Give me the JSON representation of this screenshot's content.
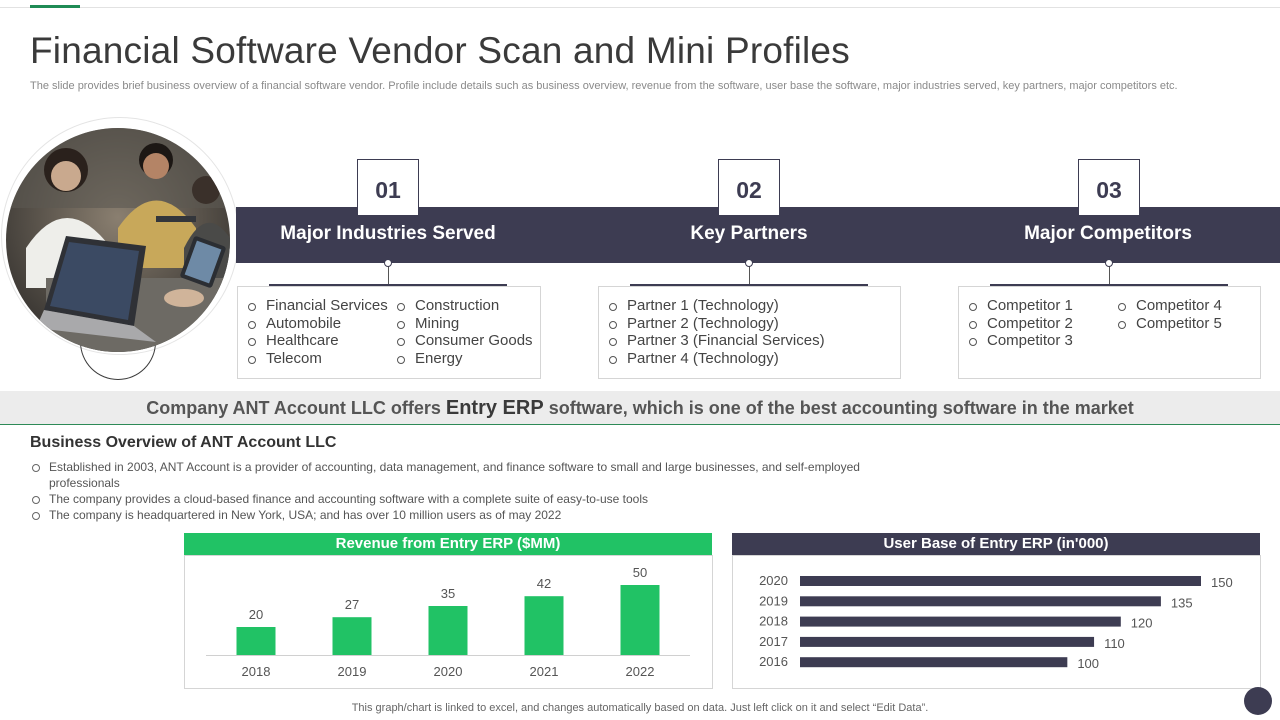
{
  "title": "Financial Software Vendor Scan and Mini Profiles",
  "subtitle": "The slide provides brief business overview of a financial software vendor. Profile include details such as business overview, revenue from the software, user base the software, major industries served, key partners, major competitors etc.",
  "profiles": [
    {
      "number": "01",
      "heading": "Major Industries Served",
      "col1": [
        "Financial Services",
        "Automobile",
        "Healthcare",
        "Telecom"
      ],
      "col2": [
        "Construction",
        "Mining",
        "Consumer Goods",
        "Energy"
      ]
    },
    {
      "number": "02",
      "heading": "Key Partners",
      "col1": [
        "Partner 1 (Technology)",
        "Partner 2 (Technology)",
        "Partner 3 (Financial Services)",
        "Partner 4 (Technology)"
      ],
      "col2": []
    },
    {
      "number": "03",
      "heading": "Major Competitors",
      "col1": [
        "Competitor 1",
        "Competitor 2",
        "Competitor 3"
      ],
      "col2": [
        "Competitor 4",
        "Competitor 5"
      ]
    }
  ],
  "banner": {
    "part1": "Company ANT Account LLC offers ",
    "emphasis": "Entry  ERP",
    "part2": " software, which is one of the best accounting software in the market"
  },
  "overview": {
    "title": "Business Overview of ANT Account LLC",
    "bullets": [
      "Established in 2003, ANT Account is a provider  of accounting, data management,  and finance  software to small and large businesses, and self-employed  professionals",
      "The company provides  a cloud-based finance and accounting software with a complete suite of easy-to-use tools",
      "The company is headquartered  in New York, USA; and has over  10 million users as of may 2022"
    ]
  },
  "colors": {
    "navy": "#3d3c52",
    "green": "#21c265",
    "green_dark": "#1f8b55"
  },
  "icons": {
    "photo": "people-working-photo",
    "corner": "navigation-dot-icon"
  },
  "chart_data": [
    {
      "type": "bar",
      "title": "Revenue from Entry ERP ($MM)",
      "categories": [
        "2018",
        "2019",
        "2020",
        "2021",
        "2022"
      ],
      "values": [
        20,
        27,
        35,
        42,
        50
      ],
      "ylim": [
        0,
        50
      ]
    },
    {
      "type": "bar",
      "orientation": "horizontal",
      "title": "User Base of Entry ERP (in'000)",
      "categories": [
        "2020",
        "2019",
        "2018",
        "2017",
        "2016"
      ],
      "values": [
        150,
        135,
        120,
        110,
        100
      ],
      "xlim": [
        0,
        150
      ]
    }
  ],
  "footnote": "This graph/chart is linked to excel,  and changes automatically based on data. Just left click on it and select “Edit Data”."
}
